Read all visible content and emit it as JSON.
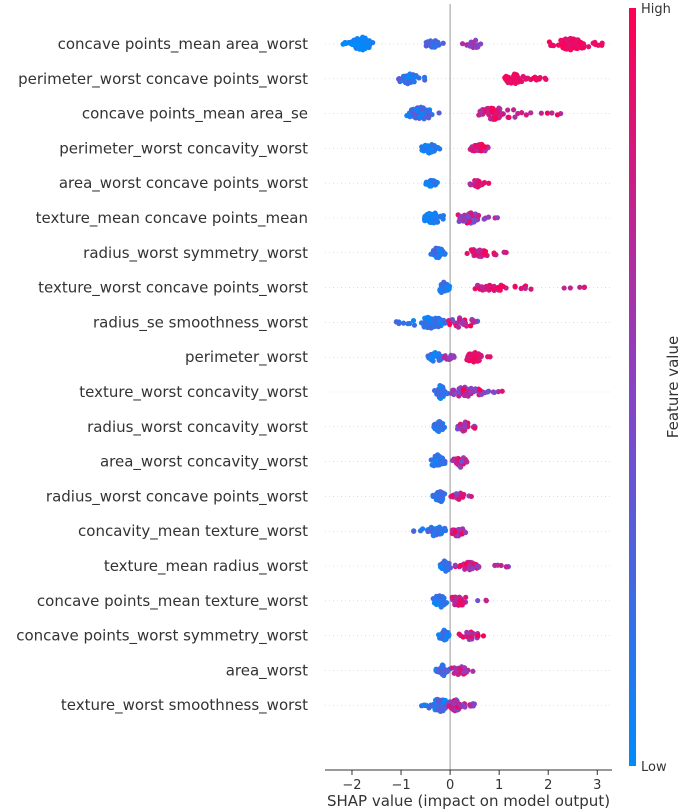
{
  "chart_data": {
    "type": "scatter",
    "subtype": "shap-beeswarm",
    "xlabel": "SHAP value (impact on model output)",
    "xlim": [
      -2.55,
      3.3
    ],
    "xticks": [
      -2,
      -1,
      0,
      1,
      2,
      3
    ],
    "colorbar": {
      "title": "Feature value",
      "high_label": "High",
      "low_label": "Low",
      "low_color": "#008bfb",
      "high_color": "#ff0052"
    },
    "features": [
      {
        "name": "concave points_mean area_worst",
        "clusters": [
          {
            "lo": -2.3,
            "hi": -1.55,
            "center": -1.8,
            "n": 70,
            "fmin": 0.0,
            "fmax": 0.1,
            "spread": 7
          },
          {
            "lo": -0.5,
            "hi": -0.1,
            "center": -0.35,
            "n": 22,
            "fmin": 0.15,
            "fmax": 0.4,
            "spread": 5
          },
          {
            "lo": 0.2,
            "hi": 0.75,
            "center": 0.5,
            "n": 18,
            "fmin": 0.3,
            "fmax": 0.7,
            "spread": 4
          },
          {
            "lo": 2.0,
            "hi": 3.1,
            "center": 2.45,
            "n": 90,
            "fmin": 0.85,
            "fmax": 1.0,
            "spread": 6
          }
        ]
      },
      {
        "name": "perimeter_worst concave points_worst",
        "clusters": [
          {
            "lo": -1.05,
            "hi": -0.5,
            "center": -0.85,
            "n": 35,
            "fmin": 0.05,
            "fmax": 0.35,
            "spread": 6
          },
          {
            "lo": 0.95,
            "hi": 2.0,
            "center": 1.3,
            "n": 55,
            "fmin": 0.85,
            "fmax": 1.0,
            "spread": 5
          }
        ]
      },
      {
        "name": "concave points_mean area_se",
        "clusters": [
          {
            "lo": -0.9,
            "hi": -0.2,
            "center": -0.6,
            "n": 55,
            "fmin": 0.0,
            "fmax": 0.4,
            "spread": 7
          },
          {
            "lo": 0.5,
            "hi": 2.3,
            "center": 0.9,
            "n": 70,
            "fmin": 0.6,
            "fmax": 1.0,
            "spread": 6
          }
        ]
      },
      {
        "name": "perimeter_worst concavity_worst",
        "clusters": [
          {
            "lo": -0.6,
            "hi": -0.2,
            "center": -0.42,
            "n": 35,
            "fmin": 0.0,
            "fmax": 0.2,
            "spread": 5
          },
          {
            "lo": 0.4,
            "hi": 0.8,
            "center": 0.6,
            "n": 35,
            "fmin": 0.6,
            "fmax": 1.0,
            "spread": 5
          }
        ]
      },
      {
        "name": "area_worst concave points_worst",
        "clusters": [
          {
            "lo": -0.5,
            "hi": -0.25,
            "center": -0.38,
            "n": 30,
            "fmin": 0.0,
            "fmax": 0.2,
            "spread": 4
          },
          {
            "lo": 0.4,
            "hi": 0.8,
            "center": 0.55,
            "n": 30,
            "fmin": 0.6,
            "fmax": 1.0,
            "spread": 4
          }
        ]
      },
      {
        "name": "texture_mean concave points_mean",
        "clusters": [
          {
            "lo": -0.65,
            "hi": -0.05,
            "center": -0.35,
            "n": 40,
            "fmin": 0.0,
            "fmax": 0.2,
            "spread": 6
          },
          {
            "lo": 0.15,
            "hi": 1.0,
            "center": 0.4,
            "n": 45,
            "fmin": 0.35,
            "fmax": 1.0,
            "spread": 6
          }
        ]
      },
      {
        "name": "radius_worst symmetry_worst",
        "clusters": [
          {
            "lo": -0.4,
            "hi": -0.1,
            "center": -0.25,
            "n": 30,
            "fmin": 0.0,
            "fmax": 0.35,
            "spread": 6
          },
          {
            "lo": 0.25,
            "hi": 1.35,
            "center": 0.6,
            "n": 35,
            "fmin": 0.55,
            "fmax": 1.0,
            "spread": 4
          }
        ]
      },
      {
        "name": "texture_worst concave points_worst",
        "clusters": [
          {
            "lo": -0.25,
            "hi": 0.1,
            "center": -0.15,
            "n": 30,
            "fmin": 0.0,
            "fmax": 0.3,
            "spread": 6
          },
          {
            "lo": 0.1,
            "hi": 2.85,
            "center": 0.8,
            "n": 45,
            "fmin": 0.6,
            "fmax": 1.0,
            "spread": 3
          }
        ]
      },
      {
        "name": "radius_se smoothness_worst",
        "clusters": [
          {
            "lo": -1.1,
            "hi": -0.1,
            "center": -0.4,
            "n": 75,
            "fmin": 0.0,
            "fmax": 0.3,
            "spread": 6
          },
          {
            "lo": -0.05,
            "hi": 0.6,
            "center": 0.25,
            "n": 35,
            "fmin": 0.3,
            "fmax": 1.0,
            "spread": 6
          }
        ]
      },
      {
        "name": "perimeter_worst",
        "clusters": [
          {
            "lo": -0.45,
            "hi": -0.15,
            "center": -0.3,
            "n": 30,
            "fmin": 0.0,
            "fmax": 0.3,
            "spread": 6
          },
          {
            "lo": -0.2,
            "hi": 0.15,
            "center": 0.0,
            "n": 10,
            "fmin": 0.4,
            "fmax": 0.8,
            "spread": 3
          },
          {
            "lo": 0.3,
            "hi": 0.9,
            "center": 0.5,
            "n": 45,
            "fmin": 0.8,
            "fmax": 1.0,
            "spread": 5
          }
        ]
      },
      {
        "name": "texture_worst concavity_worst",
        "clusters": [
          {
            "lo": -0.35,
            "hi": -0.05,
            "center": -0.2,
            "n": 40,
            "fmin": 0.0,
            "fmax": 0.3,
            "spread": 7
          },
          {
            "lo": 0.0,
            "hi": 1.1,
            "center": 0.3,
            "n": 55,
            "fmin": 0.35,
            "fmax": 1.0,
            "spread": 5
          }
        ]
      },
      {
        "name": "radius_worst concavity_worst",
        "clusters": [
          {
            "lo": -0.35,
            "hi": -0.1,
            "center": -0.22,
            "n": 30,
            "fmin": 0.0,
            "fmax": 0.25,
            "spread": 6
          },
          {
            "lo": 0.1,
            "hi": 0.55,
            "center": 0.3,
            "n": 25,
            "fmin": 0.4,
            "fmax": 1.0,
            "spread": 5
          }
        ]
      },
      {
        "name": "area_worst concavity_worst",
        "clusters": [
          {
            "lo": -0.45,
            "hi": -0.05,
            "center": -0.25,
            "n": 35,
            "fmin": 0.0,
            "fmax": 0.3,
            "spread": 7
          },
          {
            "lo": 0.0,
            "hi": 0.4,
            "center": 0.2,
            "n": 28,
            "fmin": 0.35,
            "fmax": 1.0,
            "spread": 6
          }
        ]
      },
      {
        "name": "radius_worst concave points_worst",
        "clusters": [
          {
            "lo": -0.35,
            "hi": -0.05,
            "center": -0.2,
            "n": 30,
            "fmin": 0.0,
            "fmax": 0.3,
            "spread": 6
          },
          {
            "lo": 0.0,
            "hi": 0.45,
            "center": 0.2,
            "n": 22,
            "fmin": 0.4,
            "fmax": 1.0,
            "spread": 4
          }
        ]
      },
      {
        "name": "concavity_mean texture_worst",
        "clusters": [
          {
            "lo": -0.9,
            "hi": -0.05,
            "center": -0.3,
            "n": 35,
            "fmin": 0.0,
            "fmax": 0.35,
            "spread": 5
          },
          {
            "lo": 0.0,
            "hi": 0.45,
            "center": 0.15,
            "n": 25,
            "fmin": 0.4,
            "fmax": 1.0,
            "spread": 5
          }
        ]
      },
      {
        "name": "texture_mean radius_worst",
        "clusters": [
          {
            "lo": -0.2,
            "hi": 0.05,
            "center": -0.1,
            "n": 25,
            "fmin": 0.0,
            "fmax": 0.3,
            "spread": 7
          },
          {
            "lo": 0.1,
            "hi": 1.2,
            "center": 0.4,
            "n": 50,
            "fmin": 0.45,
            "fmax": 1.0,
            "spread": 4
          }
        ]
      },
      {
        "name": "concave points_mean texture_worst",
        "clusters": [
          {
            "lo": -0.35,
            "hi": 0.0,
            "center": -0.2,
            "n": 35,
            "fmin": 0.0,
            "fmax": 0.3,
            "spread": 7
          },
          {
            "lo": 0.0,
            "hi": 0.85,
            "center": 0.2,
            "n": 35,
            "fmin": 0.35,
            "fmax": 1.0,
            "spread": 5
          }
        ]
      },
      {
        "name": "concave points_worst symmetry_worst",
        "clusters": [
          {
            "lo": -0.25,
            "hi": 0.0,
            "center": -0.12,
            "n": 30,
            "fmin": 0.0,
            "fmax": 0.3,
            "spread": 6
          },
          {
            "lo": 0.15,
            "hi": 0.75,
            "center": 0.4,
            "n": 30,
            "fmin": 0.5,
            "fmax": 1.0,
            "spread": 4
          }
        ]
      },
      {
        "name": "area_worst",
        "clusters": [
          {
            "lo": -0.3,
            "hi": 0.0,
            "center": -0.15,
            "n": 30,
            "fmin": 0.0,
            "fmax": 0.35,
            "spread": 6
          },
          {
            "lo": 0.0,
            "hi": 0.5,
            "center": 0.2,
            "n": 28,
            "fmin": 0.45,
            "fmax": 1.0,
            "spread": 5
          }
        ]
      },
      {
        "name": "texture_worst smoothness_worst",
        "clusters": [
          {
            "lo": -0.6,
            "hi": 0.0,
            "center": -0.2,
            "n": 55,
            "fmin": 0.0,
            "fmax": 0.35,
            "spread": 7
          },
          {
            "lo": -0.05,
            "hi": 0.5,
            "center": 0.1,
            "n": 40,
            "fmin": 0.35,
            "fmax": 1.0,
            "spread": 6
          }
        ]
      }
    ]
  }
}
